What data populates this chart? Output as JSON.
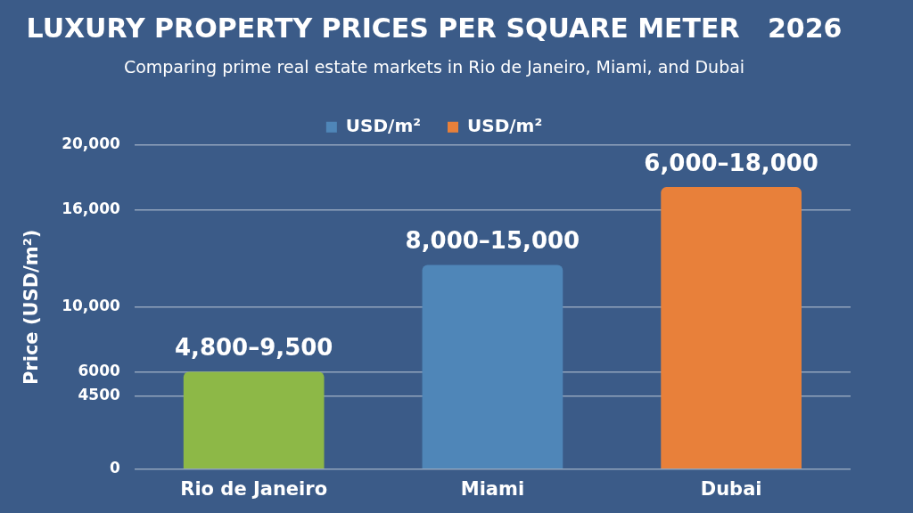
{
  "chart_data": {
    "type": "bar",
    "title": "LUXURY PROPERTY PRICES PER SQUARE METER   2026",
    "subtitle": "Comparing prime real estate markets in Rio de Janeiro, Miami, and Dubai",
    "ylabel": "Price (USD/m²)",
    "categories": [
      "Rio de Janeiro",
      "Miami",
      "Dubai"
    ],
    "series": [
      {
        "color": "#8db847",
        "values": [
          6000,
          null,
          null
        ],
        "value_labels": [
          "4,800–9,500",
          null,
          null
        ]
      },
      {
        "name": "USD/m²",
        "color": "#4f86b8",
        "values": [
          null,
          12600,
          null
        ],
        "value_labels": [
          null,
          "8,000–15,000",
          null
        ]
      },
      {
        "name": "USD/m²",
        "color": "#e8803a",
        "values": [
          null,
          null,
          17400
        ],
        "value_labels": [
          null,
          null,
          "6,000–18,000"
        ]
      }
    ],
    "stacked": true,
    "ylim": [
      0,
      20000
    ],
    "yticks": [
      0,
      4500,
      6000,
      {
        "value": 10000,
        "label": "10,000"
      },
      {
        "value": 16000,
        "label": "16,000"
      },
      {
        "value": 20000,
        "label": "20,000"
      }
    ],
    "grid": "y",
    "legend": "top"
  }
}
